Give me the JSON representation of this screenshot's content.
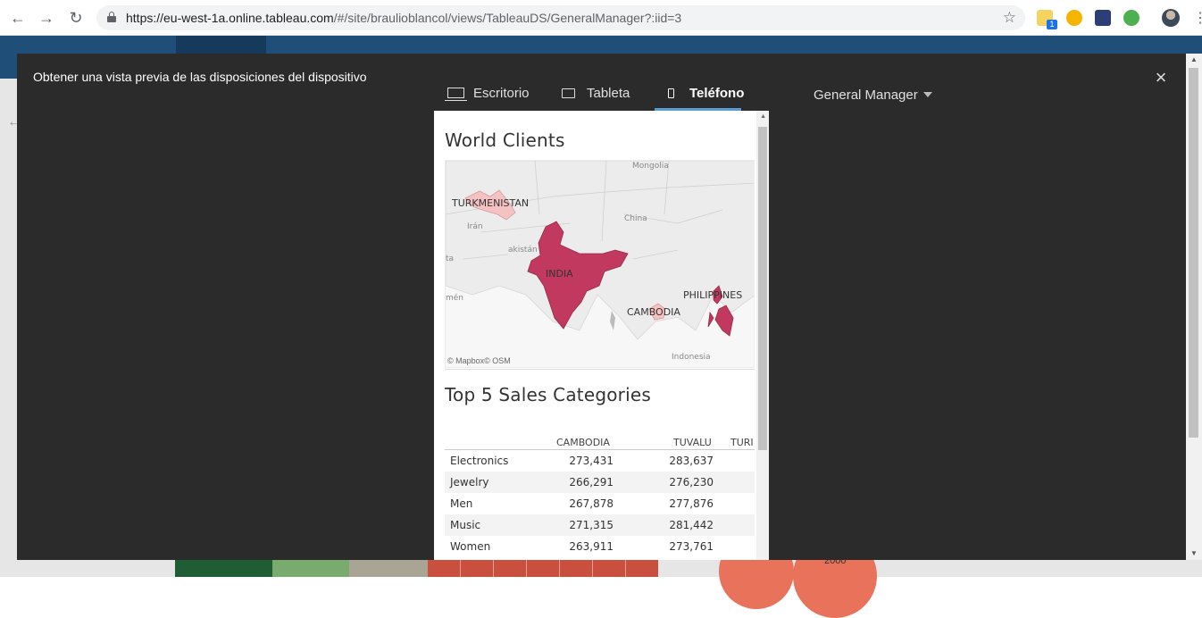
{
  "browser": {
    "url_host": "https://eu-west-1a.online.tableau.com",
    "url_path": "/#/site/braulioblancol/views/TableauDS/GeneralManager?:iid=3",
    "extension_badge": "1"
  },
  "background": {
    "label_2000": "2000"
  },
  "modal": {
    "title": "Obtener una vista previa de las disposiciones del dispositivo",
    "tabs": [
      {
        "label": "Escritorio",
        "icon": "desktop-icon",
        "active": false
      },
      {
        "label": "Tableta",
        "icon": "tablet-icon",
        "active": false
      },
      {
        "label": "Teléfono",
        "icon": "phone-icon",
        "active": true
      }
    ],
    "user_selector": "General Manager",
    "close_icon": "close-icon"
  },
  "preview": {
    "map_title": "World Clients",
    "map_labels": {
      "mongolia": "Mongolia",
      "turkmenistan": "TURKMENISTAN",
      "china": "China",
      "iran": "Irán",
      "pakistan": "akistán",
      "india": "INDIA",
      "philippines": "PHILIPPINES",
      "cambodia": "CAMBODIA",
      "oman": "mén",
      "indonesia": "Indonesia",
      "ta": "ta"
    },
    "map_credit": "© Mapbox© OSM",
    "colors": {
      "highlight": "#c1395f",
      "light": "#f4c2c2"
    },
    "table_title": "Top 5 Sales Categories",
    "table": {
      "columns": [
        "CAMBODIA",
        "TUVALU",
        "TURI"
      ],
      "rows": [
        {
          "label": "Electronics",
          "v1": "273,431",
          "v2": "283,637"
        },
        {
          "label": "Jewelry",
          "v1": "266,291",
          "v2": "276,230"
        },
        {
          "label": "Men",
          "v1": "267,878",
          "v2": "277,876"
        },
        {
          "label": "Music",
          "v1": "271,315",
          "v2": "281,442"
        },
        {
          "label": "Women",
          "v1": "263,911",
          "v2": "273,761"
        }
      ]
    }
  }
}
